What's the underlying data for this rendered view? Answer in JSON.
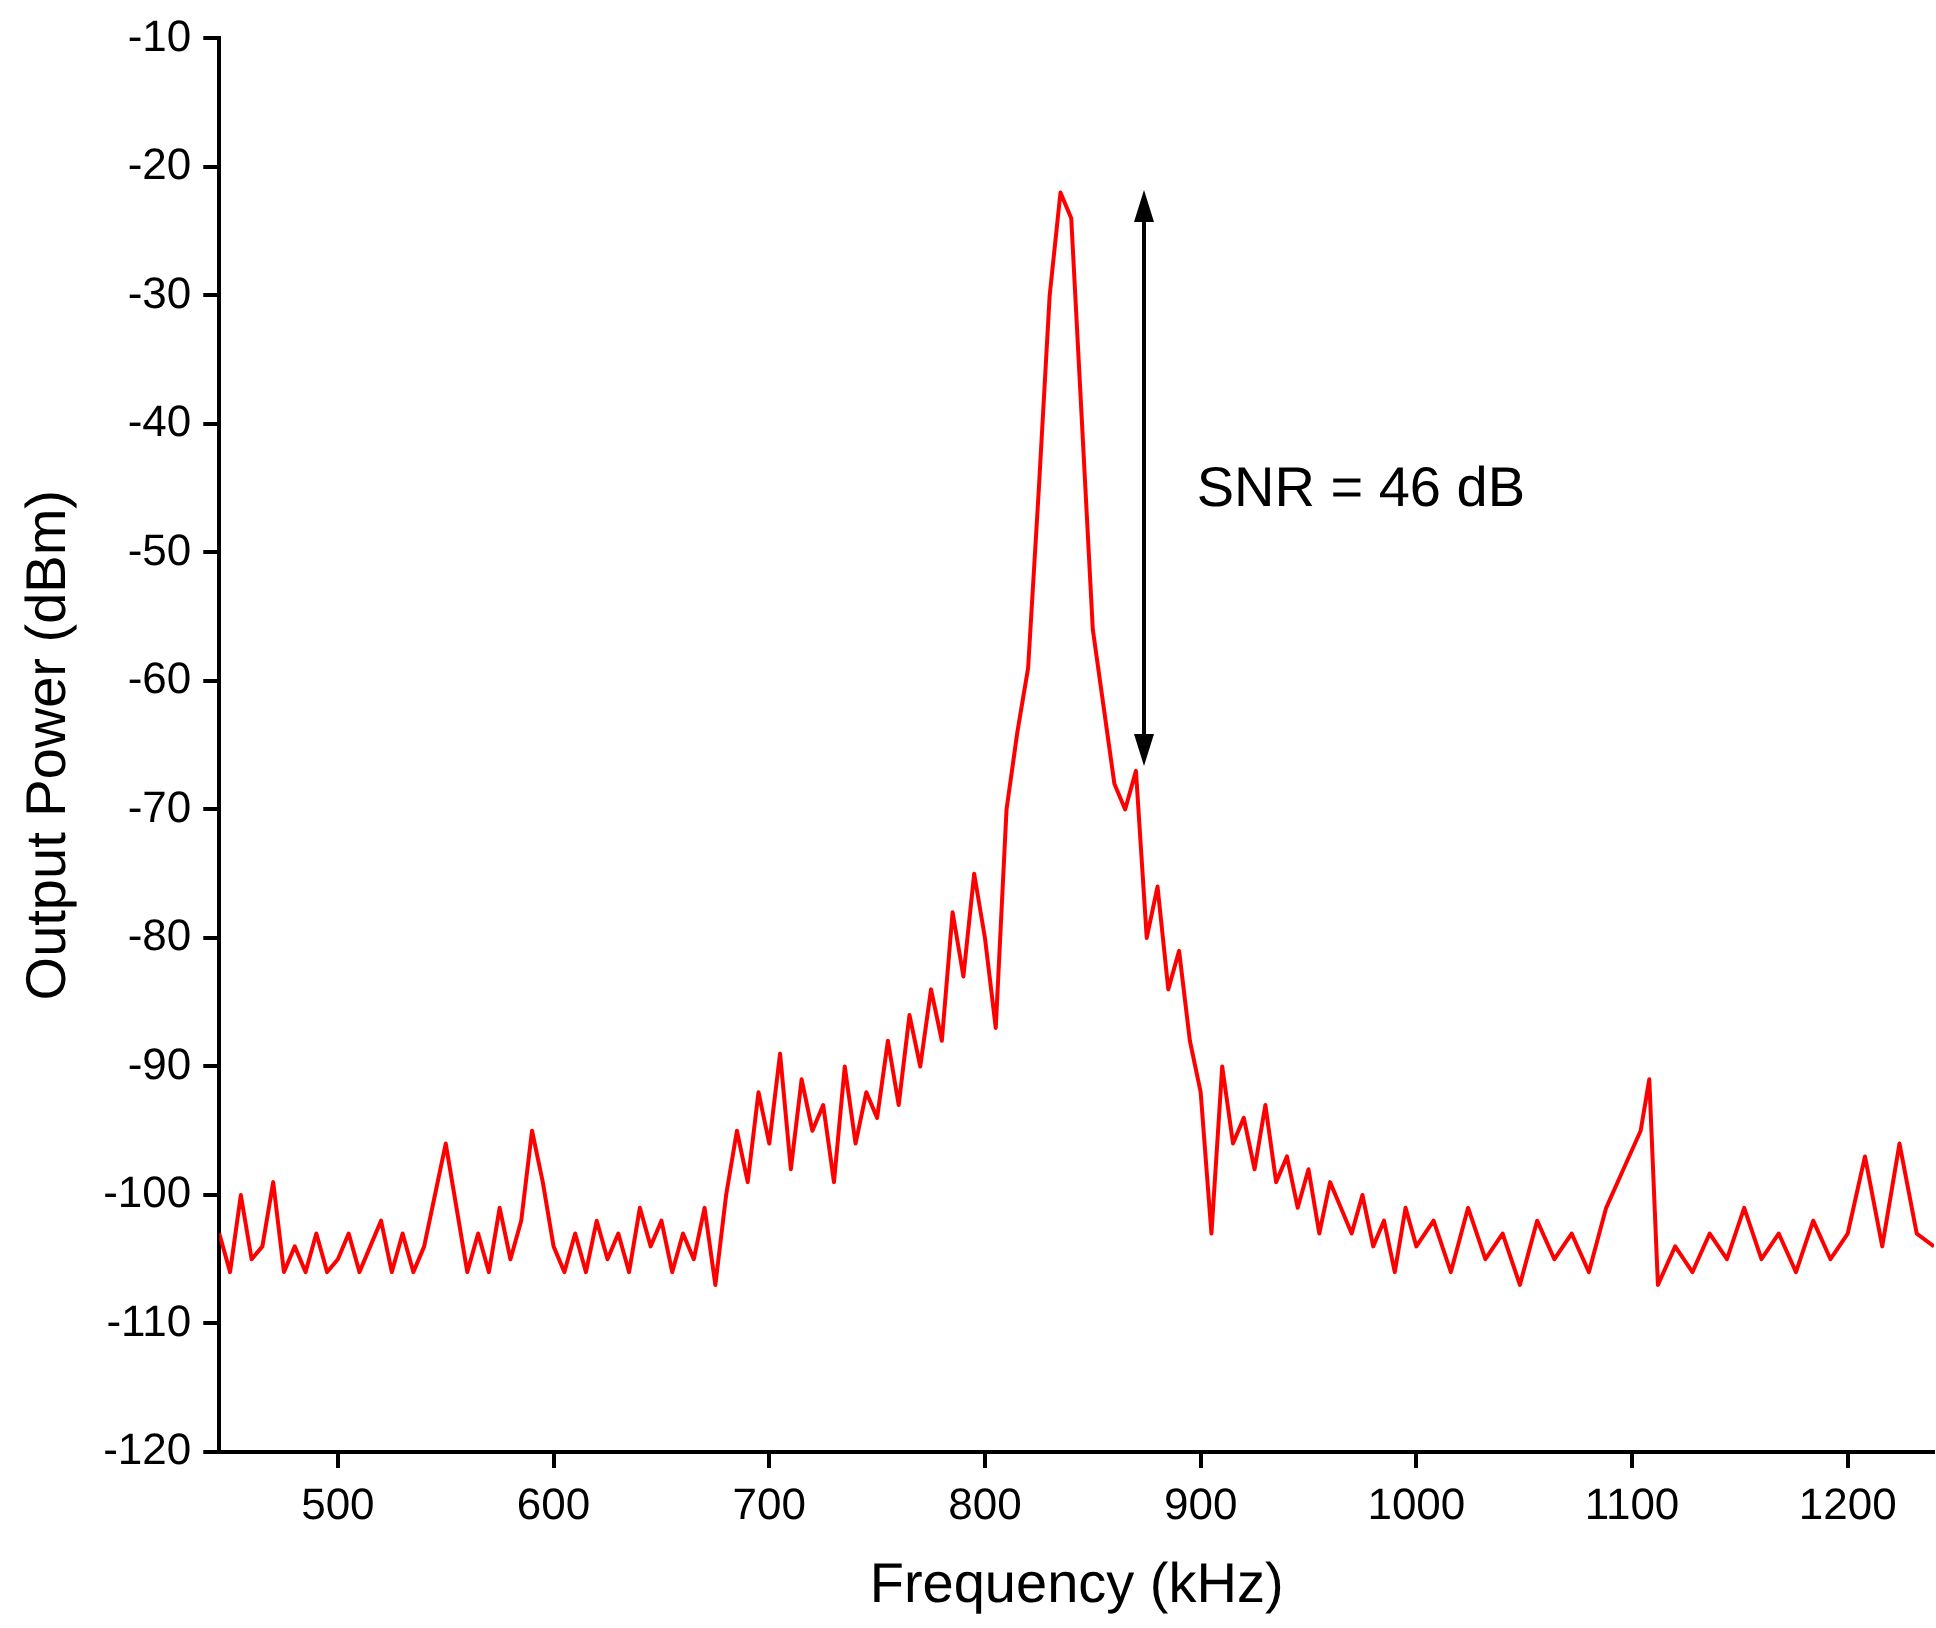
{
  "chart_data": {
    "type": "line",
    "xlabel": "Frequency (kHz)",
    "ylabel": "Output Power (dBm)",
    "xlim": [
      445,
      1240
    ],
    "xticks": [
      500,
      600,
      700,
      800,
      900,
      1000,
      1100,
      1200
    ],
    "ylim": [
      -120,
      -10
    ],
    "yticks": [
      -120,
      -110,
      -100,
      -90,
      -80,
      -70,
      -60,
      -50,
      -40,
      -30,
      -20,
      -10
    ],
    "annotations": [
      "SNR = 46 dB"
    ],
    "series": [
      {
        "color": "#ff0000",
        "x": [
          445,
          450,
          455,
          460,
          465,
          470,
          475,
          480,
          485,
          490,
          495,
          500,
          505,
          510,
          515,
          520,
          525,
          530,
          535,
          540,
          545,
          550,
          555,
          560,
          565,
          570,
          575,
          580,
          585,
          590,
          595,
          600,
          605,
          610,
          615,
          620,
          625,
          630,
          635,
          640,
          645,
          650,
          655,
          660,
          665,
          670,
          675,
          680,
          685,
          690,
          695,
          700,
          705,
          710,
          715,
          720,
          725,
          730,
          735,
          740,
          745,
          750,
          755,
          760,
          765,
          770,
          775,
          780,
          785,
          790,
          795,
          800,
          805,
          810,
          815,
          820,
          825,
          830,
          835,
          840,
          845,
          850,
          855,
          860,
          865,
          870,
          875,
          880,
          885,
          890,
          895,
          900,
          905,
          910,
          915,
          920,
          925,
          930,
          935,
          940,
          945,
          950,
          955,
          960,
          965,
          970,
          975,
          980,
          985,
          990,
          995,
          1000,
          1008,
          1016,
          1024,
          1032,
          1040,
          1048,
          1056,
          1064,
          1072,
          1080,
          1088,
          1096,
          1104,
          1108,
          1112,
          1120,
          1128,
          1136,
          1144,
          1152,
          1160,
          1168,
          1176,
          1184,
          1192,
          1200,
          1208,
          1216,
          1224,
          1232,
          1240
        ],
        "values": [
          -103,
          -106,
          -100,
          -105,
          -104,
          -99,
          -106,
          -104,
          -106,
          -103,
          -106,
          -105,
          -103,
          -106,
          -104,
          -102,
          -106,
          -103,
          -106,
          -104,
          -100,
          -96,
          -101,
          -106,
          -103,
          -106,
          -101,
          -105,
          -102,
          -95,
          -99,
          -104,
          -106,
          -103,
          -106,
          -102,
          -105,
          -103,
          -106,
          -101,
          -104,
          -102,
          -106,
          -103,
          -105,
          -101,
          -107,
          -100,
          -95,
          -99,
          -92,
          -96,
          -89,
          -98,
          -91,
          -95,
          -93,
          -99,
          -90,
          -96,
          -92,
          -94,
          -88,
          -93,
          -86,
          -90,
          -84,
          -88,
          -78,
          -83,
          -75,
          -80,
          -87,
          -70,
          -64,
          -59,
          -45,
          -30,
          -22,
          -24,
          -40,
          -56,
          -62,
          -68,
          -70,
          -67,
          -80,
          -76,
          -84,
          -81,
          -88,
          -92,
          -103,
          -90,
          -96,
          -94,
          -98,
          -93,
          -99,
          -97,
          -101,
          -98,
          -103,
          -99,
          -101,
          -103,
          -100,
          -104,
          -102,
          -106,
          -101,
          -104,
          -102,
          -106,
          -101,
          -105,
          -103,
          -107,
          -102,
          -105,
          -103,
          -106,
          -101,
          -98,
          -95,
          -91,
          -107,
          -104,
          -106,
          -103,
          -105,
          -101,
          -105,
          -103,
          -106,
          -102,
          -105,
          -103,
          -97,
          -104,
          -96,
          -103,
          -104
        ]
      }
    ]
  }
}
